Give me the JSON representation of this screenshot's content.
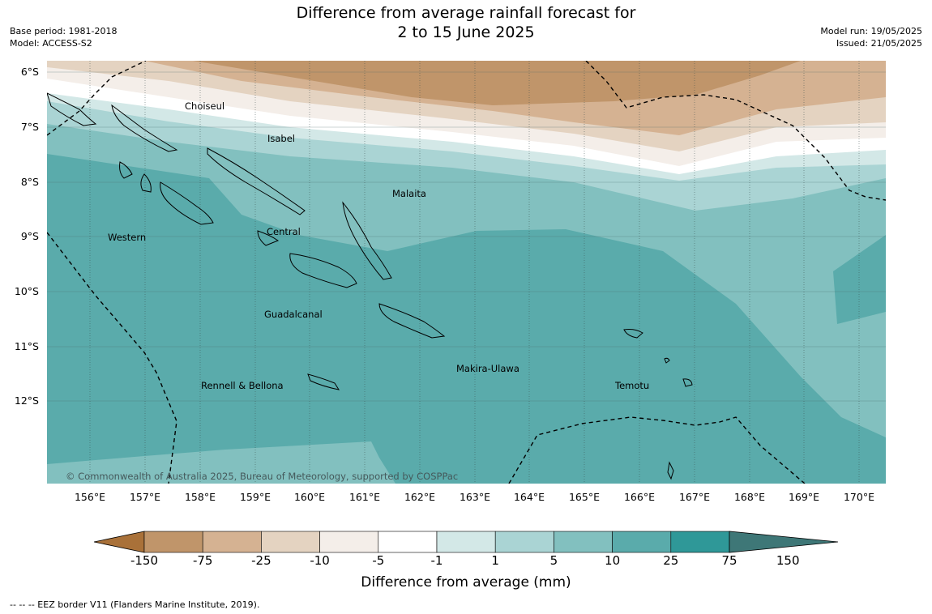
{
  "title_line1": "Difference from average rainfall forecast for",
  "title_line2": "2 to 15 June 2025",
  "base_period": "Base period: 1981-2018",
  "model": "Model: ACCESS-S2",
  "model_run": "Model run: 19/05/2025",
  "issued": "Issued: 21/05/2025",
  "lat_labels": [
    "6°S",
    "7°S",
    "8°S",
    "9°S",
    "10°S",
    "11°S",
    "12°S"
  ],
  "lon_labels": [
    "156°E",
    "157°E",
    "158°E",
    "159°E",
    "160°E",
    "161°E",
    "162°E",
    "163°E",
    "164°E",
    "165°E",
    "166°E",
    "167°E",
    "168°E",
    "169°E",
    "170°E"
  ],
  "places": [
    "Choiseul",
    "Isabel",
    "Malaita",
    "Western",
    "Central",
    "Guadalcanal",
    "Makira-Ulawa",
    "Rennell & Bellona",
    "Temotu"
  ],
  "copyright": "© Commonwealth of Australia 2025, Bureau of Meteorology, supported by COSPPac",
  "colorbar": {
    "ticks": [
      "-150",
      "-75",
      "-25",
      "-10",
      "-5",
      "-1",
      "1",
      "5",
      "10",
      "25",
      "75",
      "150"
    ],
    "colors": [
      "#a97139",
      "#c0956a",
      "#d5b292",
      "#e4d3c1",
      "#f4eee9",
      "#ffffff",
      "#d3e8e7",
      "#aad4d4",
      "#82c0bf",
      "#5aabab",
      "#2f9898",
      "#3e7777"
    ],
    "title": "Difference from average (mm)"
  },
  "footnote": "--  --  -- EEZ border V11 (Flanders Marine Institute, 2019)."
}
